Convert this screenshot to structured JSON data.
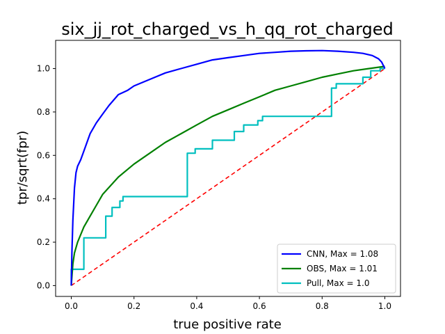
{
  "chart_data": {
    "type": "line",
    "title": "six_jj_rot_charged_vs_h_qq_rot_charged",
    "xlabel": "true positive rate",
    "ylabel": "tpr/sqrt(fpr)",
    "xlim": [
      -0.05,
      1.05
    ],
    "ylim": [
      -0.05,
      1.13
    ],
    "xticks": [
      "0.0",
      "0.2",
      "0.4",
      "0.6",
      "0.8",
      "1.0"
    ],
    "yticks": [
      "0.0",
      "0.2",
      "0.4",
      "0.6",
      "0.8",
      "1.0"
    ],
    "grid": false,
    "legend_position": "lower-right",
    "series": [
      {
        "name": "CNN, Max = 1.08",
        "color": "#0000ff",
        "style": "solid",
        "x": [
          0.0,
          0.002,
          0.005,
          0.01,
          0.015,
          0.02,
          0.03,
          0.04,
          0.05,
          0.06,
          0.08,
          0.1,
          0.12,
          0.15,
          0.18,
          0.2,
          0.25,
          0.3,
          0.35,
          0.4,
          0.45,
          0.5,
          0.55,
          0.6,
          0.65,
          0.7,
          0.75,
          0.8,
          0.85,
          0.9,
          0.93,
          0.96,
          0.98,
          0.99,
          1.0
        ],
        "y": [
          0.0,
          0.15,
          0.3,
          0.45,
          0.52,
          0.55,
          0.58,
          0.62,
          0.66,
          0.7,
          0.75,
          0.79,
          0.83,
          0.88,
          0.9,
          0.92,
          0.95,
          0.98,
          1.0,
          1.02,
          1.04,
          1.05,
          1.06,
          1.07,
          1.075,
          1.08,
          1.082,
          1.083,
          1.08,
          1.075,
          1.07,
          1.06,
          1.045,
          1.03,
          1.0
        ]
      },
      {
        "name": "OBS, Max = 1.01",
        "color": "#008000",
        "style": "solid",
        "x": [
          0.0,
          0.005,
          0.01,
          0.02,
          0.04,
          0.06,
          0.08,
          0.1,
          0.15,
          0.2,
          0.25,
          0.3,
          0.35,
          0.4,
          0.45,
          0.5,
          0.55,
          0.6,
          0.65,
          0.7,
          0.75,
          0.8,
          0.85,
          0.9,
          0.95,
          1.0
        ],
        "y": [
          0.0,
          0.1,
          0.15,
          0.2,
          0.27,
          0.32,
          0.37,
          0.42,
          0.5,
          0.56,
          0.61,
          0.66,
          0.7,
          0.74,
          0.78,
          0.81,
          0.84,
          0.87,
          0.9,
          0.92,
          0.94,
          0.96,
          0.975,
          0.99,
          1.0,
          1.01
        ]
      },
      {
        "name": "Pull, Max = 1.0",
        "color": "#00bfbf",
        "style": "step",
        "x": [
          0.0,
          0.0,
          0.04,
          0.04,
          0.11,
          0.11,
          0.13,
          0.13,
          0.155,
          0.155,
          0.165,
          0.165,
          0.37,
          0.37,
          0.395,
          0.395,
          0.45,
          0.45,
          0.52,
          0.52,
          0.55,
          0.55,
          0.595,
          0.595,
          0.61,
          0.61,
          0.83,
          0.83,
          0.845,
          0.845,
          0.93,
          0.93,
          0.955,
          0.955,
          0.985,
          0.985,
          1.0
        ],
        "y": [
          0.0,
          0.075,
          0.075,
          0.22,
          0.22,
          0.32,
          0.32,
          0.36,
          0.36,
          0.39,
          0.39,
          0.41,
          0.41,
          0.61,
          0.61,
          0.63,
          0.63,
          0.67,
          0.67,
          0.71,
          0.71,
          0.74,
          0.74,
          0.76,
          0.76,
          0.78,
          0.78,
          0.91,
          0.91,
          0.93,
          0.93,
          0.96,
          0.96,
          0.99,
          0.99,
          1.0,
          1.0
        ]
      },
      {
        "name": "diagonal",
        "color": "#ff0000",
        "style": "dashed",
        "x": [
          0.0,
          1.0
        ],
        "y": [
          0.0,
          1.0
        ]
      }
    ]
  }
}
